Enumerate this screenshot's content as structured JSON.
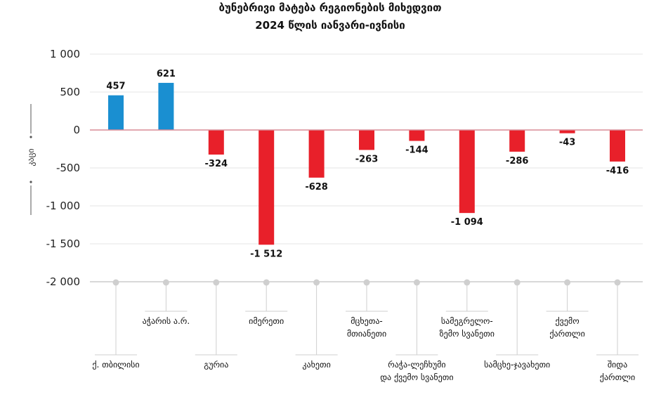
{
  "chart_data": {
    "type": "bar",
    "title": "ბუნებრივი მატება რეგიონების მიხედვით",
    "subtitle": "2024 წლის იანვარი-ივნისი",
    "ylabel": "კაცი",
    "ylim": [
      -2000,
      1000
    ],
    "yticks": [
      1000,
      500,
      0,
      -500,
      -1000,
      -1500,
      -2000
    ],
    "ytick_labels": [
      "1 000",
      "500",
      "0",
      "-500",
      "-1 000",
      "-1 500",
      "-2 000"
    ],
    "grid": true,
    "categories": [
      "ქ. თბილისი",
      "აჭარის ა.რ.",
      "გურია",
      "იმერეთი",
      "კახეთი",
      "მცხეთა-მთიანეთი",
      "რაჭა-ლეჩხუმი და ქვემო სვანეთი",
      "სამეგრელო-ზემო სვანეთი",
      "სამცხე-ჯავახეთი",
      "ქვემო ქართლი",
      "შიდა ქართლი"
    ],
    "category_lines": [
      [
        "ქ. თბილისი"
      ],
      [
        "აჭარის ა.რ."
      ],
      [
        "გურია"
      ],
      [
        "იმერეთი"
      ],
      [
        "კახეთი"
      ],
      [
        "მცხეთა-",
        "მთიანეთი"
      ],
      [
        "რაჭა-ლეჩხუმი",
        "და ქვემო სვანეთი"
      ],
      [
        "სამეგრელო-",
        "ზემო სვანეთი"
      ],
      [
        "სამცხე-ჯავახეთი"
      ],
      [
        "ქვემო",
        "ქართლი"
      ],
      [
        "შიდა",
        "ქართლი"
      ]
    ],
    "category_levels": [
      "low",
      "high",
      "low",
      "high",
      "low",
      "high",
      "low",
      "high",
      "low",
      "high",
      "low"
    ],
    "values": [
      457,
      621,
      -324,
      -1512,
      -628,
      -263,
      -144,
      -1094,
      -286,
      -43,
      -416
    ],
    "value_labels": [
      "457",
      "621",
      "-324",
      "-1 512",
      "-628",
      "-263",
      "-144",
      "-1 094",
      "-286",
      "-43",
      "-416"
    ],
    "colors": {
      "positive": "#1a8fd1",
      "negative": "#e8202a",
      "zero_line": "#d98c95",
      "grid": "#e6e6e6",
      "connector": "#cfcfcf"
    }
  }
}
